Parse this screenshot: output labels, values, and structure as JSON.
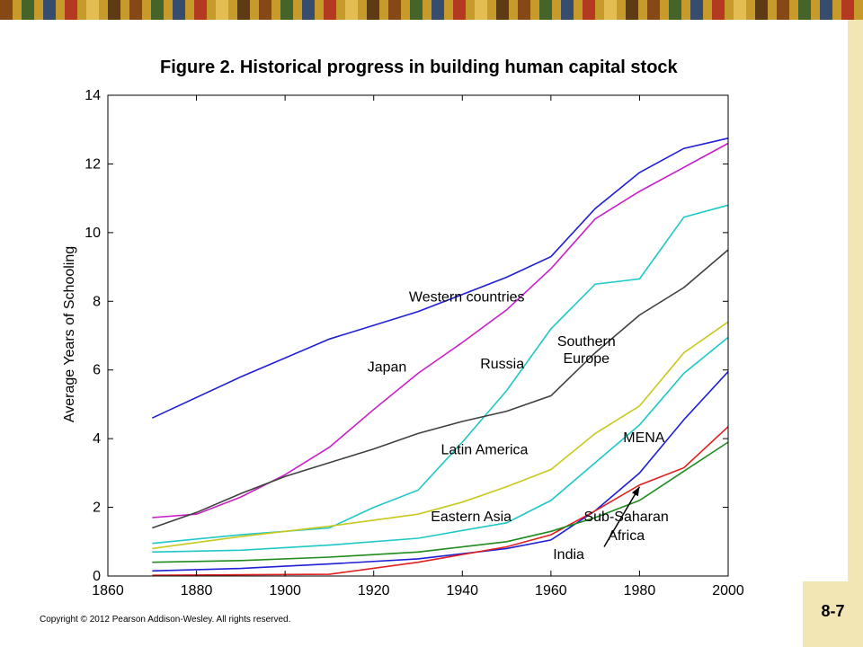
{
  "slide": {
    "page_number": "8-7",
    "copyright": "Copyright © 2012 Pearson Addison-Wesley. All rights reserved."
  },
  "chart_data": {
    "type": "line",
    "title": "Figure 2.  Historical progress in building human capital stock",
    "xlabel": "",
    "ylabel": "Average Years of Schooling",
    "xlim": [
      1860,
      2000
    ],
    "ylim": [
      0,
      14
    ],
    "x_ticks": [
      1860,
      1880,
      1900,
      1920,
      1940,
      1960,
      1980,
      2000
    ],
    "y_ticks": [
      0,
      2,
      4,
      6,
      8,
      10,
      12,
      14
    ],
    "grid": false,
    "legend": "inline labels",
    "series": [
      {
        "name": "Western countries",
        "color": "#1f1fd6",
        "x": [
          1870,
          1890,
          1910,
          1930,
          1950,
          1960,
          1970,
          1980,
          1990,
          2000
        ],
        "y": [
          4.6,
          5.8,
          6.9,
          7.7,
          8.7,
          9.3,
          10.7,
          11.75,
          12.45,
          12.75
        ]
      },
      {
        "name": "Japan",
        "color": "#c81fc8",
        "x": [
          1870,
          1880,
          1890,
          1900,
          1910,
          1920,
          1930,
          1940,
          1950,
          1960,
          1970,
          1980,
          1990,
          2000
        ],
        "y": [
          1.7,
          1.8,
          2.3,
          2.95,
          3.75,
          4.85,
          5.9,
          6.8,
          7.75,
          8.95,
          10.4,
          11.2,
          11.9,
          12.6
        ]
      },
      {
        "name": "Russia",
        "color": "#1fc8c8",
        "x": [
          1870,
          1890,
          1910,
          1920,
          1930,
          1940,
          1950,
          1960,
          1970,
          1980,
          1990,
          2000
        ],
        "y": [
          0.95,
          1.2,
          1.4,
          2.0,
          2.5,
          3.9,
          5.4,
          7.2,
          8.5,
          8.65,
          10.45,
          10.8
        ]
      },
      {
        "name": "Southern Europe",
        "color": "#404040",
        "x": [
          1870,
          1880,
          1890,
          1900,
          1910,
          1920,
          1930,
          1940,
          1950,
          1960,
          1970,
          1980,
          1990,
          2000
        ],
        "y": [
          1.4,
          1.85,
          2.4,
          2.9,
          3.3,
          3.7,
          4.15,
          4.5,
          4.8,
          5.25,
          6.5,
          7.6,
          8.4,
          9.5
        ]
      },
      {
        "name": "Latin America",
        "color": "#c8c81f",
        "x": [
          1870,
          1890,
          1910,
          1930,
          1940,
          1950,
          1960,
          1970,
          1980,
          1990,
          2000
        ],
        "y": [
          0.8,
          1.15,
          1.45,
          1.8,
          2.15,
          2.6,
          3.1,
          4.15,
          4.95,
          6.5,
          7.4
        ]
      },
      {
        "name": "Eastern Asia",
        "color": "#1fc8c8",
        "x": [
          1870,
          1890,
          1910,
          1930,
          1950,
          1960,
          1970,
          1980,
          1990,
          2000
        ],
        "y": [
          0.7,
          0.75,
          0.9,
          1.1,
          1.55,
          2.2,
          3.3,
          4.4,
          5.9,
          6.95
        ]
      },
      {
        "name": "MENA",
        "color": "#1f1fd6",
        "x": [
          1870,
          1890,
          1910,
          1930,
          1950,
          1960,
          1970,
          1980,
          1990,
          2000
        ],
        "y": [
          0.15,
          0.22,
          0.35,
          0.5,
          0.8,
          1.05,
          1.9,
          3.0,
          4.55,
          5.95
        ]
      },
      {
        "name": "India",
        "color": "#e01f1f",
        "x": [
          1870,
          1910,
          1930,
          1950,
          1960,
          1970,
          1980,
          1990,
          2000
        ],
        "y": [
          0.02,
          0.05,
          0.4,
          0.85,
          1.2,
          1.9,
          2.65,
          3.15,
          4.35
        ]
      },
      {
        "name": "Sub-Saharan Africa",
        "color": "#1f8c1f",
        "x": [
          1870,
          1890,
          1910,
          1930,
          1950,
          1960,
          1970,
          1980,
          1990,
          2000
        ],
        "y": [
          0.4,
          0.45,
          0.55,
          0.7,
          1.0,
          1.3,
          1.7,
          2.2,
          3.05,
          3.9
        ]
      }
    ],
    "annotations": [
      {
        "text": "Western countries",
        "x": 1941,
        "y": 8.0
      },
      {
        "text": "Japan",
        "x": 1923,
        "y": 5.95
      },
      {
        "text": "Russia",
        "x": 1949,
        "y": 6.05
      },
      {
        "text": "Southern",
        "x": 1968,
        "y": 6.7
      },
      {
        "text": "Europe",
        "x": 1968,
        "y": 6.2
      },
      {
        "text": "Latin America",
        "x": 1945,
        "y": 3.55
      },
      {
        "text": "MENA",
        "x": 1981,
        "y": 3.9
      },
      {
        "text": "Eastern Asia",
        "x": 1942,
        "y": 1.6
      },
      {
        "text": "Sub-Saharan",
        "x": 1977,
        "y": 1.6
      },
      {
        "text": "Africa",
        "x": 1977,
        "y": 1.05
      },
      {
        "text": "India",
        "x": 1964,
        "y": 0.5
      }
    ],
    "arrow": {
      "from": [
        1972,
        0.85
      ],
      "to": [
        1980,
        2.6
      ]
    }
  }
}
